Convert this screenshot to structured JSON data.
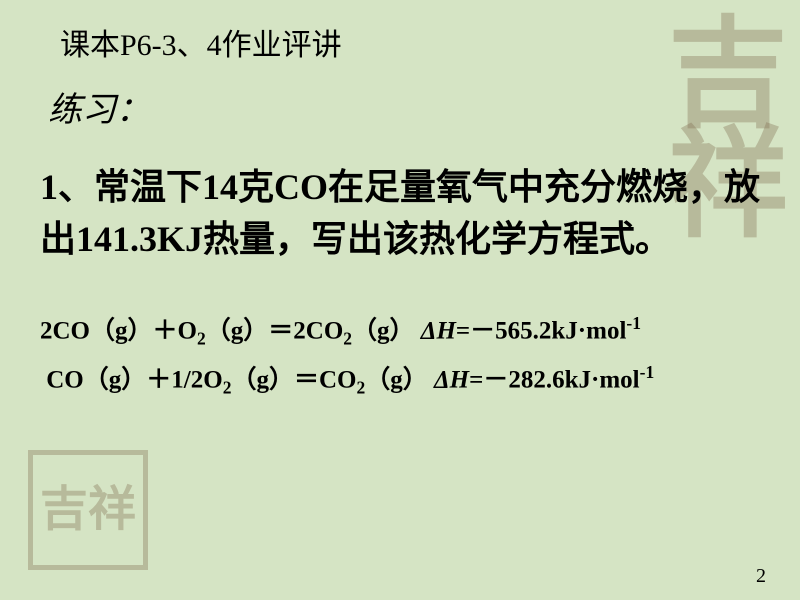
{
  "colors": {
    "background": "#d5e4c4",
    "text": "#000000",
    "watermark": "rgba(130,110,80,0.35)"
  },
  "typography": {
    "header_fontsize": 30,
    "practice_fontsize": 34,
    "question_fontsize": 36,
    "equation_fontsize": 25,
    "pagenum_fontsize": 20
  },
  "header": {
    "text": "课本P6-3、4作业评讲"
  },
  "practice_label": "练习：",
  "question": {
    "text": "1、常温下14克CO在足量氧气中充分燃烧，放出141.3KJ热量，写出该热化学方程式。"
  },
  "equations": {
    "eq1": {
      "lhs_coef1": "2",
      "species1": "CO",
      "state1": "（g）",
      "plus": "＋",
      "species2": "O",
      "sub2": "2",
      "state2": "（g）",
      "eq_sign": "＝",
      "rhs_coef": "2",
      "species3": "CO",
      "sub3": "2",
      "state3": "（g）",
      "dh_label": "ΔH",
      "dh_eq": "=",
      "dh_value": "－565.2kJ·mol",
      "dh_sup": "-1"
    },
    "eq2": {
      "species1": "CO",
      "state1": "（g）",
      "plus": "＋",
      "coef2": "1/2",
      "species2": "O",
      "sub2": "2",
      "state2": "（g）",
      "eq_sign": "＝",
      "species3": "CO",
      "sub3": "2",
      "state3": "（g）",
      "dh_label": "ΔH",
      "dh_eq": "=",
      "dh_value": "－282.6kJ·mol",
      "dh_sup": "-1"
    }
  },
  "watermarks": {
    "top": "吉祥",
    "bottom": "吉祥"
  },
  "page_number": "2"
}
